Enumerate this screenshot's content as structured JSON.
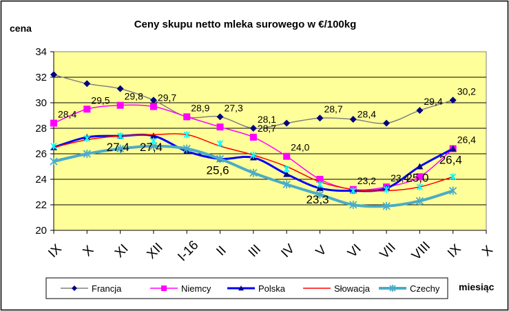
{
  "chart_data": {
    "type": "line",
    "title": "Ceny skupu netto mleka surowego  w €/100kg",
    "ylabel": "cena",
    "xlabel": "miesiąc",
    "ylim": [
      20,
      34
    ],
    "yticks": [
      20,
      22,
      24,
      26,
      28,
      30,
      32,
      34
    ],
    "grid": true,
    "legend": "bottom",
    "categories": [
      "IX",
      "X",
      "XI",
      "XII",
      "I-16",
      "II",
      "III",
      "IV",
      "V",
      "VI",
      "VII",
      "VIII",
      "IX",
      "X"
    ],
    "series": [
      {
        "name": "Francja",
        "color": "#808080",
        "marker_color": "#000080",
        "marker": "diamond",
        "width": 1.5,
        "values": [
          32.2,
          31.5,
          31.1,
          30.2,
          28.9,
          28.9,
          28.0,
          28.4,
          28.8,
          28.7,
          28.4,
          29.4,
          30.2,
          null
        ]
      },
      {
        "name": "Niemcy",
        "color": "#ff00ff",
        "marker_color": "#ff00ff",
        "marker": "square",
        "width": 1.5,
        "values": [
          28.4,
          29.5,
          29.8,
          29.7,
          28.9,
          28.1,
          27.3,
          25.8,
          24.0,
          23.2,
          23.4,
          24.2,
          26.4,
          null
        ]
      },
      {
        "name": "Polska",
        "color": "#0000ff",
        "marker_color": "#000080",
        "marker": "triangle",
        "width": 3,
        "values": [
          26.5,
          27.3,
          27.4,
          27.4,
          26.2,
          25.6,
          25.7,
          24.4,
          23.3,
          23.1,
          23.3,
          25.0,
          26.4,
          null
        ]
      },
      {
        "name": "Słowacja",
        "color": "#ff0000",
        "marker_color": "#ff0000",
        "marker": "none",
        "width": 1.5,
        "values": [
          26.5,
          27.1,
          27.4,
          27.5,
          27.5,
          26.6,
          25.9,
          25.0,
          23.8,
          23.2,
          23.1,
          23.4,
          24.2,
          null
        ]
      },
      {
        "name": "Czechy",
        "color": "#4bacc6",
        "marker_color": "#4bacc6",
        "marker": "star",
        "width": 4,
        "values": [
          25.4,
          26.0,
          26.4,
          26.6,
          26.4,
          25.6,
          24.5,
          23.6,
          22.8,
          22.0,
          21.9,
          22.3,
          23.1,
          null
        ]
      }
    ],
    "extra_markers": [
      {
        "color": "#00ffff",
        "points": [
          [
            0,
            26.6
          ],
          [
            1,
            27.2
          ],
          [
            2,
            27.4
          ],
          [
            3,
            27.0
          ],
          [
            4,
            27.5
          ],
          [
            5,
            26.8
          ],
          [
            6,
            25.9
          ],
          [
            7,
            24.8
          ],
          [
            8,
            23.6
          ],
          [
            9,
            23.1
          ],
          [
            10,
            23.2
          ],
          [
            11,
            23.4
          ],
          [
            12,
            24.2
          ]
        ]
      }
    ],
    "annotations": [
      {
        "text": "28,4",
        "cat": 0,
        "y": 28.4,
        "big": false
      },
      {
        "text": "29,5",
        "cat": 1,
        "y": 29.5,
        "big": false
      },
      {
        "text": "29,8",
        "cat": 2,
        "y": 29.8,
        "big": false
      },
      {
        "text": "29,7",
        "cat": 3,
        "y": 29.7,
        "big": false
      },
      {
        "text": "28,9",
        "cat": 4,
        "y": 28.9,
        "big": false
      },
      {
        "text": "27,3",
        "cat": 5,
        "y": 28.9,
        "big": false
      },
      {
        "text": "28,1",
        "cat": 6,
        "y": 28.0,
        "big": false
      },
      {
        "text": "28,7",
        "cat": 6,
        "y": 27.3,
        "big": false
      },
      {
        "text": "24,0",
        "cat": 7,
        "y": 25.8,
        "big": false
      },
      {
        "text": "28,7",
        "cat": 8,
        "y": 28.8,
        "big": false
      },
      {
        "text": "28,4",
        "cat": 9,
        "y": 28.4,
        "big": false
      },
      {
        "text": "29,4",
        "cat": 11,
        "y": 29.4,
        "big": false
      },
      {
        "text": "30,2",
        "cat": 12,
        "y": 30.2,
        "big": false
      },
      {
        "text": "26,4",
        "cat": 12,
        "y": 26.4,
        "big": false
      },
      {
        "text": "23,2",
        "cat": 9,
        "y": 23.2,
        "big": false
      },
      {
        "text": "23,4",
        "cat": 10,
        "y": 23.4,
        "big": false
      },
      {
        "text": "27,4",
        "cat": 2,
        "y": 27.4,
        "big": true
      },
      {
        "text": "27,4",
        "cat": 3,
        "y": 27.4,
        "big": true
      },
      {
        "text": "25,6",
        "cat": 5,
        "y": 25.6,
        "big": true
      },
      {
        "text": "23,3",
        "cat": 8,
        "y": 23.3,
        "big": true
      },
      {
        "text": "25,0",
        "cat": 11,
        "y": 25.0,
        "big": true
      },
      {
        "text": "26,4",
        "cat": 12,
        "y": 26.4,
        "big": true
      }
    ]
  }
}
